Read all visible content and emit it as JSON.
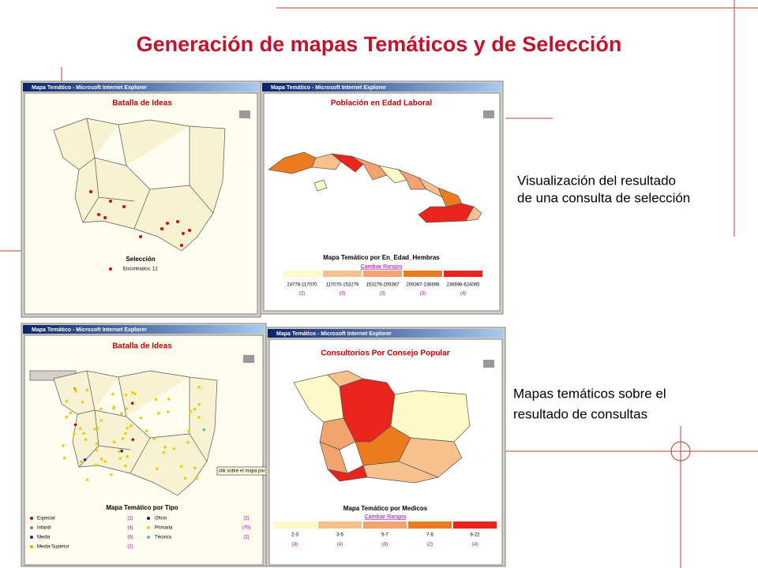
{
  "title": "Generación de mapas Temáticos y de Selección",
  "captions": [
    {
      "lines": [
        "Visualización del resultado",
        "de una consulta de selección"
      ]
    },
    {
      "lines": [
        "Mapas temáticos sobre el",
        "resultado de consultas"
      ]
    }
  ],
  "windows": [
    {
      "window_title": "Mapa Temático - Microsoft Internet Explorer",
      "map_title": "Batalla de Ideas",
      "legend_title": "Selección",
      "legend_entry": "Encontrados: 12"
    },
    {
      "window_title": "Mapa Temático - Microsoft Internet Explorer",
      "map_title": "Población en Edad Laboral",
      "legend_title": "Mapa Temático por En_Edad_Hembras",
      "link": "Cambiar Rangos",
      "ranges": [
        "24778-117070",
        "117070-153279",
        "153279-209367",
        "209367-236698",
        "236698-624065"
      ],
      "counts": [
        "(2)",
        "(3)",
        "(3)",
        "(3)",
        "(4)"
      ],
      "colors": [
        "#fdfac8",
        "#f7c18e",
        "#f3a46e",
        "#ec7a1e",
        "#e8241c"
      ]
    },
    {
      "window_title": "Mapa Temático - Microsoft Internet Explorer",
      "map_title": "Batalla de Ideas",
      "legend_title": "Mapa Temático por Tipo",
      "tooltip": "clik sobre el mapa par",
      "items": [
        {
          "name": "Especial",
          "count": "(2)",
          "color": "#c00000"
        },
        {
          "name": "Infantil",
          "count": "(4)",
          "color": "#808080"
        },
        {
          "name": "Media",
          "count": "(6)",
          "color": "#2020a0"
        },
        {
          "name": "Media Superior",
          "count": "(2)",
          "color": "#f0a000"
        },
        {
          "name": "Oficio",
          "count": "(2)",
          "color": "#202040"
        },
        {
          "name": "Primaria",
          "count": "(70)",
          "color": "#f8c800"
        },
        {
          "name": "Técnica",
          "count": "(2)",
          "color": "#60c0a0"
        }
      ]
    },
    {
      "window_title": "Mapa Temático - Microsoft Internet Explorer",
      "map_title": "Consultorios Por Consejo Popular",
      "legend_title": "Mapa Temático por Medicos",
      "link": "Cambiar Rangos",
      "ranges": [
        "2-3",
        "3-5",
        "5-7",
        "7-8",
        "8-22"
      ],
      "counts": [
        "(3)",
        "(4)",
        "(3)",
        "(2)",
        "(4)"
      ],
      "colors": [
        "#fdfac8",
        "#f7c18e",
        "#f3a46e",
        "#ec7a1e",
        "#e8241c"
      ]
    }
  ]
}
